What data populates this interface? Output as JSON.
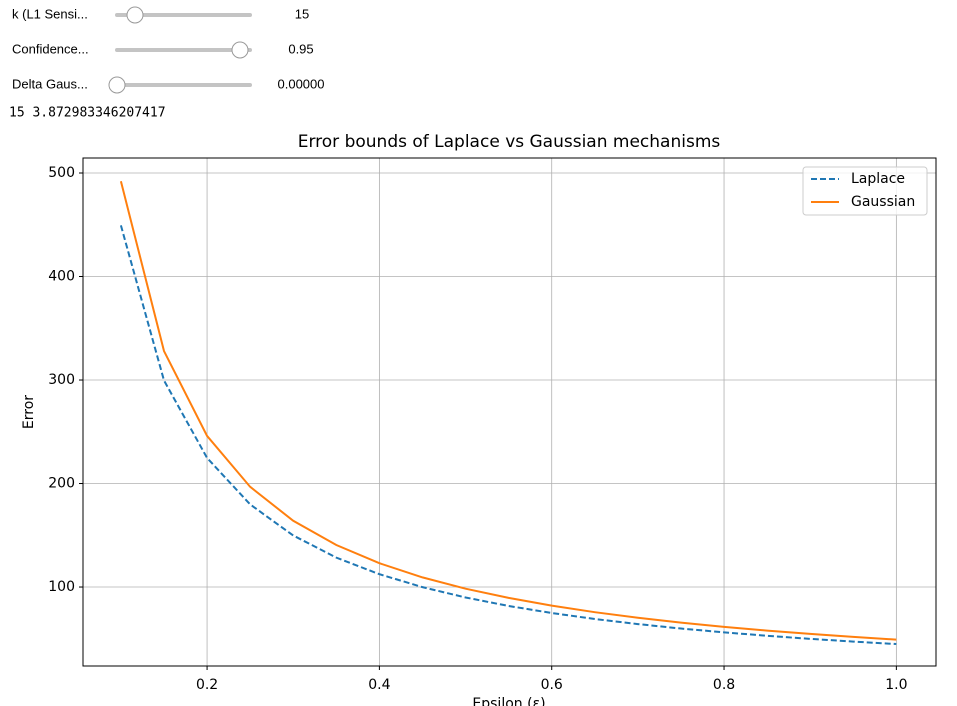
{
  "widgets": [
    {
      "label": "k (L1 Sensi...",
      "value": "15"
    },
    {
      "label": "Confidence...",
      "value": "0.95"
    },
    {
      "label": "Delta Gaus...",
      "value": "0.00000"
    }
  ],
  "output_text": "15 3.872983346207417",
  "chart_data": {
    "type": "line",
    "title": "Error bounds of Laplace vs Gaussian mechanisms",
    "x_label": "Epsilon (ε)",
    "y_label": "Error",
    "x": [
      0.1,
      0.15,
      0.2,
      0.25,
      0.3,
      0.35,
      0.4,
      0.45,
      0.5,
      0.55,
      0.6,
      0.65,
      0.7,
      0.75,
      0.8,
      0.85,
      0.9,
      0.95,
      1.0
    ],
    "series": [
      {
        "name": "Laplace",
        "color": "#1f77b4",
        "dashed": true,
        "values": [
          449.4,
          299.6,
          224.7,
          179.8,
          149.8,
          128.4,
          112.4,
          99.9,
          89.9,
          81.7,
          74.9,
          69.1,
          64.2,
          59.9,
          56.2,
          52.9,
          49.9,
          47.3,
          44.9
        ]
      },
      {
        "name": "Gaussian",
        "color": "#ff7f0e",
        "dashed": false,
        "values": [
          492,
          328,
          246,
          196.8,
          164,
          140.6,
          123,
          109.3,
          98.4,
          89.5,
          82,
          75.7,
          70.3,
          65.6,
          61.5,
          57.9,
          54.7,
          51.8,
          49.2
        ]
      }
    ],
    "xlim": [
      0.056,
      1.046
    ],
    "ylim": [
      23.7,
      514.5
    ],
    "xticks": [
      0.2,
      0.4,
      0.6,
      0.8,
      {
        "value": 1,
        "label": "1.0"
      }
    ],
    "yticks": [
      100,
      200,
      300,
      400,
      500
    ],
    "grid": true,
    "legend": "upper right"
  }
}
